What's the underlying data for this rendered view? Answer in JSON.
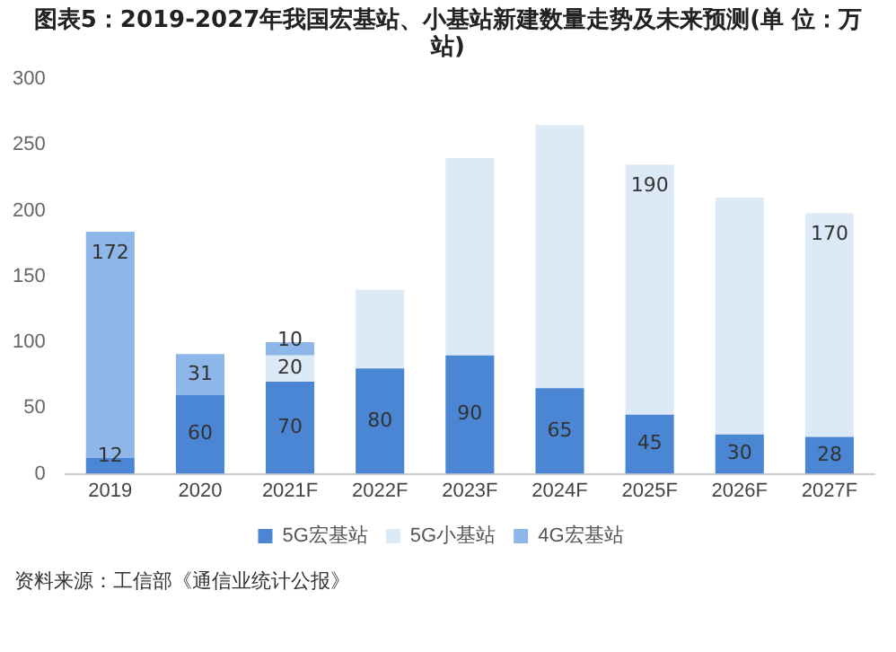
{
  "chart_data": {
    "type": "bar",
    "title": "图表5：2019-2027年我国宏基站、小基站新建数量走势及未来预测(单 位：万站)",
    "categories": [
      "2019",
      "2020",
      "2021F",
      "2022F",
      "2023F",
      "2024F",
      "2025F",
      "2026F",
      "2027F"
    ],
    "stacked": true,
    "series": [
      {
        "name": "5G宏基站",
        "color": "#4a86d4",
        "values": [
          12,
          60,
          70,
          80,
          90,
          65,
          45,
          30,
          28
        ],
        "value_labels": [
          "12",
          "60",
          "70",
          "80",
          "90",
          "65",
          "45",
          "30",
          "28"
        ]
      },
      {
        "name": "5G小基站",
        "color": "#dce9f6",
        "values": [
          null,
          null,
          20,
          60,
          150,
          200,
          190,
          180,
          170
        ],
        "value_labels": [
          null,
          null,
          "20",
          null,
          null,
          null,
          "190",
          null,
          "170"
        ]
      },
      {
        "name": "4G宏基站",
        "color": "#8fb6e8",
        "values": [
          172,
          31,
          10,
          null,
          null,
          null,
          null,
          null,
          null
        ],
        "value_labels": [
          "172",
          "31",
          "10",
          null,
          null,
          null,
          null,
          null,
          null
        ]
      }
    ],
    "ylim": [
      0,
      300
    ],
    "yticks": [
      0,
      50,
      100,
      150,
      200,
      250,
      300
    ],
    "grid": false,
    "legend": "bottom",
    "annotations": [
      "资料来源：工信部《通信业统计公报》"
    ]
  }
}
